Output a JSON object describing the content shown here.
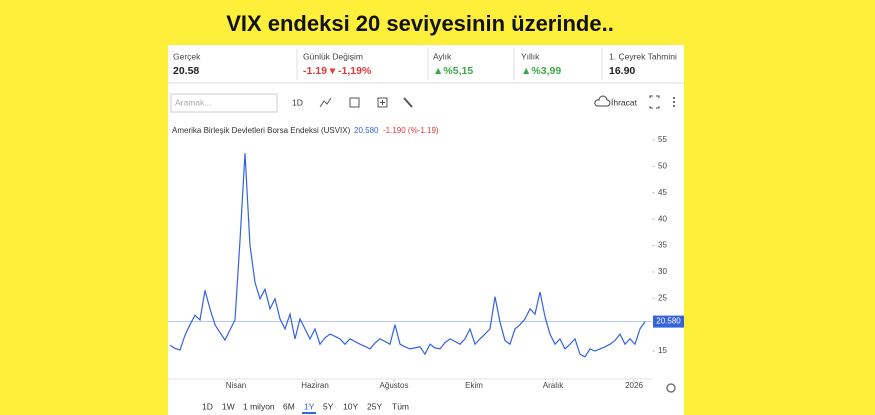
{
  "headline": "VIX endeksi 20 seviyesinin üzerinde..",
  "stats": [
    {
      "label": "Gerçek",
      "value": "20.58"
    },
    {
      "label": "Günlük Değişim",
      "value": "-1.19 ▾ -1,19%"
    },
    {
      "label": "Aylık",
      "value": "▲%5,15"
    },
    {
      "label": "Yıllık",
      "value": "▲%3,99"
    },
    {
      "label": "1. Çeyrek Tahmini",
      "value": "16.90"
    }
  ],
  "toolbar": {
    "search": "Aramak...",
    "interval": "1D",
    "export": "İhracat"
  },
  "ranges": [
    "1D",
    "1W",
    "1 milyon",
    "6M",
    "1Y",
    "5Y",
    "10Y",
    "25Y",
    "Tüm"
  ],
  "chart_data": {
    "type": "line",
    "title": "Amerika Birleşik Devletleri Borsa Endeksi (USVIX)",
    "last_price": "20.580",
    "last_change": "-1.190 (%-1.19)",
    "color": "#3563e0",
    "values": [
      16.1,
      15.5,
      15.2,
      18.0,
      20.0,
      21.8,
      20.9,
      26.5,
      23.0,
      20.0,
      18.5,
      17.1,
      19.0,
      20.9,
      36.0,
      52.5,
      35.0,
      28.0,
      24.9,
      26.7,
      23.0,
      24.9,
      21.1,
      19.2,
      22.0,
      17.3,
      21.1,
      19.2,
      17.3,
      19.2,
      16.3,
      17.5,
      18.2,
      17.8,
      17.3,
      16.3,
      17.3,
      16.8,
      16.3,
      15.9,
      15.4,
      16.5,
      17.3,
      16.8,
      16.3,
      20.0,
      16.3,
      15.8,
      15.4,
      15.6,
      15.8,
      14.4,
      16.3,
      15.6,
      15.4,
      16.6,
      17.3,
      16.8,
      16.3,
      17.3,
      19.2,
      16.3,
      17.3,
      18.2,
      19.2,
      25.3,
      20.5,
      17.0,
      16.3,
      19.2,
      20.0,
      21.1,
      23.0,
      22.0,
      26.2,
      21.5,
      18.2,
      16.3,
      17.3,
      15.4,
      16.3,
      17.3,
      14.4,
      13.9,
      15.4,
      15.0,
      15.4,
      15.8,
      16.3,
      17.0,
      18.2,
      16.3,
      17.3,
      16.3,
      19.2,
      20.58
    ],
    "last_value": 20.58,
    "last_value_label": "20.580",
    "ylim": [
      10,
      57
    ],
    "yticks": [
      15,
      25,
      30,
      35,
      40,
      45,
      50,
      55
    ],
    "xlim": [
      0,
      95
    ],
    "xticks": [
      {
        "value": 13.2,
        "label": "Nisan"
      },
      {
        "value": 29,
        "label": "Haziran"
      },
      {
        "value": 44.8,
        "label": "Ağustos"
      },
      {
        "value": 60.8,
        "label": "Ekim"
      },
      {
        "value": 76.6,
        "label": "Aralık"
      },
      {
        "value": 92.8,
        "label": "2026"
      }
    ]
  }
}
